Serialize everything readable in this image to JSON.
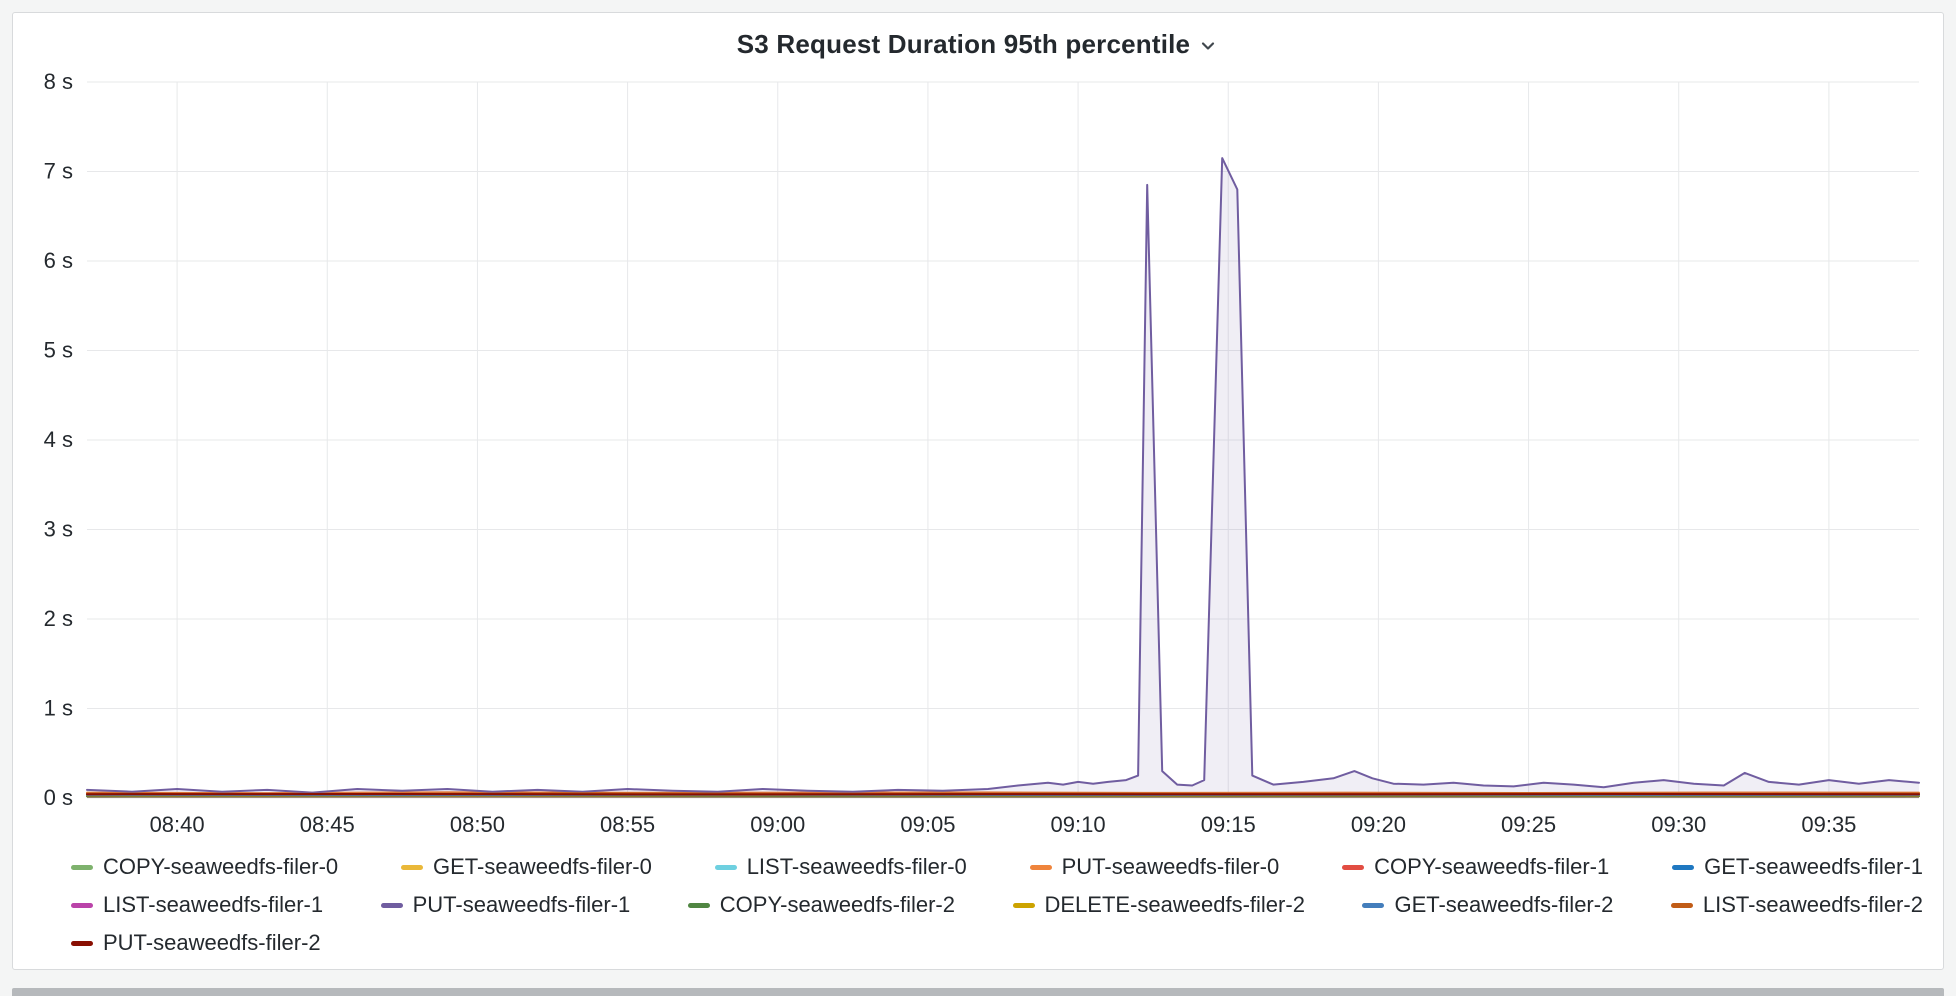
{
  "header": {
    "dropdown_icon": "chevron-down"
  },
  "chart_data": {
    "type": "line",
    "title": "S3 Request Duration 95th percentile",
    "xlabel": "",
    "ylabel": "",
    "x_unit": "time (HH:MM), minutes measured from 08:37",
    "xlim": [
      0,
      61
    ],
    "ylim": [
      0,
      8
    ],
    "grid": true,
    "fill_opacity": 0.1,
    "legend_position": "bottom",
    "y_ticks": [
      {
        "v": 0,
        "label": "0 s"
      },
      {
        "v": 1,
        "label": "1 s"
      },
      {
        "v": 2,
        "label": "2 s"
      },
      {
        "v": 3,
        "label": "3 s"
      },
      {
        "v": 4,
        "label": "4 s"
      },
      {
        "v": 5,
        "label": "5 s"
      },
      {
        "v": 6,
        "label": "6 s"
      },
      {
        "v": 7,
        "label": "7 s"
      },
      {
        "v": 8,
        "label": "8 s"
      }
    ],
    "x_ticks": [
      {
        "t": 3,
        "label": "08:40"
      },
      {
        "t": 8,
        "label": "08:45"
      },
      {
        "t": 13,
        "label": "08:50"
      },
      {
        "t": 18,
        "label": "08:55"
      },
      {
        "t": 23,
        "label": "09:00"
      },
      {
        "t": 28,
        "label": "09:05"
      },
      {
        "t": 33,
        "label": "09:10"
      },
      {
        "t": 38,
        "label": "09:15"
      },
      {
        "t": 43,
        "label": "09:20"
      },
      {
        "t": 48,
        "label": "09:25"
      },
      {
        "t": 53,
        "label": "09:30"
      },
      {
        "t": 58,
        "label": "09:35"
      }
    ],
    "series": [
      {
        "name": "COPY-seaweedfs-filer-0",
        "color": "#7EB26D",
        "points": [
          [
            0,
            0.02
          ],
          [
            10,
            0.025
          ],
          [
            20,
            0.02
          ],
          [
            30,
            0.022
          ],
          [
            40,
            0.02
          ],
          [
            50,
            0.024
          ],
          [
            61,
            0.02
          ]
        ]
      },
      {
        "name": "GET-seaweedfs-filer-0",
        "color": "#EAB839",
        "points": [
          [
            0,
            0.035
          ],
          [
            9,
            0.03
          ],
          [
            18,
            0.038
          ],
          [
            27,
            0.032
          ],
          [
            36,
            0.036
          ],
          [
            45,
            0.031
          ],
          [
            54,
            0.035
          ],
          [
            61,
            0.033
          ]
        ]
      },
      {
        "name": "LIST-seaweedfs-filer-0",
        "color": "#6ED0E0",
        "points": [
          [
            0,
            0.025
          ],
          [
            12,
            0.022
          ],
          [
            24,
            0.027
          ],
          [
            36,
            0.023
          ],
          [
            48,
            0.026
          ],
          [
            61,
            0.024
          ]
        ]
      },
      {
        "name": "PUT-seaweedfs-filer-0",
        "color": "#EF843C",
        "points": [
          [
            0,
            0.06
          ],
          [
            6,
            0.055
          ],
          [
            12,
            0.065
          ],
          [
            18,
            0.058
          ],
          [
            24,
            0.06
          ],
          [
            30,
            0.063
          ],
          [
            36,
            0.057
          ],
          [
            42,
            0.06
          ],
          [
            48,
            0.056
          ],
          [
            54,
            0.062
          ],
          [
            61,
            0.06
          ]
        ]
      },
      {
        "name": "COPY-seaweedfs-filer-1",
        "color": "#E24D42",
        "points": [
          [
            0,
            0.045
          ],
          [
            11,
            0.04
          ],
          [
            22,
            0.048
          ],
          [
            33,
            0.042
          ],
          [
            44,
            0.046
          ],
          [
            55,
            0.043
          ],
          [
            61,
            0.045
          ]
        ]
      },
      {
        "name": "GET-seaweedfs-filer-1",
        "color": "#1F78C1",
        "points": [
          [
            0,
            0.03
          ],
          [
            10,
            0.033
          ],
          [
            20,
            0.028
          ],
          [
            30,
            0.032
          ],
          [
            40,
            0.029
          ],
          [
            50,
            0.033
          ],
          [
            61,
            0.03
          ]
        ]
      },
      {
        "name": "LIST-seaweedfs-filer-1",
        "color": "#BA43A9",
        "points": [
          [
            0,
            0.025
          ],
          [
            13,
            0.028
          ],
          [
            26,
            0.023
          ],
          [
            39,
            0.027
          ],
          [
            52,
            0.024
          ],
          [
            61,
            0.026
          ]
        ]
      },
      {
        "name": "PUT-seaweedfs-filer-1",
        "color": "#705DA0",
        "points": [
          [
            0,
            0.09
          ],
          [
            1.5,
            0.07
          ],
          [
            3,
            0.1
          ],
          [
            4.5,
            0.07
          ],
          [
            6,
            0.09
          ],
          [
            7.5,
            0.06
          ],
          [
            9,
            0.1
          ],
          [
            10.5,
            0.08
          ],
          [
            12,
            0.1
          ],
          [
            13.5,
            0.07
          ],
          [
            15,
            0.09
          ],
          [
            16.5,
            0.07
          ],
          [
            18,
            0.1
          ],
          [
            19.5,
            0.08
          ],
          [
            21,
            0.07
          ],
          [
            22.5,
            0.1
          ],
          [
            24,
            0.08
          ],
          [
            25.5,
            0.07
          ],
          [
            27,
            0.09
          ],
          [
            28.5,
            0.08
          ],
          [
            30,
            0.1
          ],
          [
            31,
            0.14
          ],
          [
            32,
            0.17
          ],
          [
            32.5,
            0.15
          ],
          [
            33,
            0.18
          ],
          [
            33.5,
            0.16
          ],
          [
            34,
            0.18
          ],
          [
            34.6,
            0.2
          ],
          [
            35,
            0.25
          ],
          [
            35.3,
            6.85
          ],
          [
            35.8,
            0.3
          ],
          [
            36.3,
            0.15
          ],
          [
            36.8,
            0.14
          ],
          [
            37.2,
            0.2
          ],
          [
            37.8,
            7.15
          ],
          [
            38.3,
            6.8
          ],
          [
            38.8,
            0.25
          ],
          [
            39.5,
            0.15
          ],
          [
            40.5,
            0.18
          ],
          [
            41.5,
            0.22
          ],
          [
            42.2,
            0.3
          ],
          [
            42.8,
            0.22
          ],
          [
            43.5,
            0.16
          ],
          [
            44.5,
            0.15
          ],
          [
            45.5,
            0.17
          ],
          [
            46.5,
            0.14
          ],
          [
            47.5,
            0.13
          ],
          [
            48.5,
            0.17
          ],
          [
            49.5,
            0.15
          ],
          [
            50.5,
            0.12
          ],
          [
            51.5,
            0.17
          ],
          [
            52.5,
            0.2
          ],
          [
            53.5,
            0.16
          ],
          [
            54.5,
            0.14
          ],
          [
            55.2,
            0.28
          ],
          [
            56,
            0.18
          ],
          [
            57,
            0.15
          ],
          [
            58,
            0.2
          ],
          [
            59,
            0.16
          ],
          [
            60,
            0.2
          ],
          [
            61,
            0.17
          ]
        ]
      },
      {
        "name": "COPY-seaweedfs-filer-2",
        "color": "#508642",
        "points": [
          [
            0,
            0.02
          ],
          [
            14,
            0.023
          ],
          [
            28,
            0.019
          ],
          [
            42,
            0.022
          ],
          [
            56,
            0.02
          ],
          [
            61,
            0.021
          ]
        ]
      },
      {
        "name": "DELETE-seaweedfs-filer-2",
        "color": "#CCA300",
        "points": [
          [
            0,
            0.03
          ],
          [
            12,
            0.027
          ],
          [
            24,
            0.032
          ],
          [
            36,
            0.028
          ],
          [
            48,
            0.031
          ],
          [
            61,
            0.029
          ]
        ]
      },
      {
        "name": "GET-seaweedfs-filer-2",
        "color": "#447EBC",
        "points": [
          [
            0,
            0.035
          ],
          [
            11,
            0.032
          ],
          [
            22,
            0.037
          ],
          [
            33,
            0.033
          ],
          [
            44,
            0.036
          ],
          [
            55,
            0.034
          ],
          [
            61,
            0.035
          ]
        ]
      },
      {
        "name": "LIST-seaweedfs-filer-2",
        "color": "#C15C17",
        "points": [
          [
            0,
            0.05
          ],
          [
            8,
            0.046
          ],
          [
            16,
            0.052
          ],
          [
            24,
            0.048
          ],
          [
            32,
            0.051
          ],
          [
            40,
            0.047
          ],
          [
            48,
            0.052
          ],
          [
            56,
            0.048
          ],
          [
            61,
            0.05
          ]
        ]
      },
      {
        "name": "PUT-seaweedfs-filer-2",
        "color": "#890F02",
        "points": [
          [
            0,
            0.042
          ],
          [
            10,
            0.045
          ],
          [
            20,
            0.04
          ],
          [
            30,
            0.044
          ],
          [
            40,
            0.041
          ],
          [
            50,
            0.045
          ],
          [
            61,
            0.042
          ]
        ]
      }
    ]
  }
}
